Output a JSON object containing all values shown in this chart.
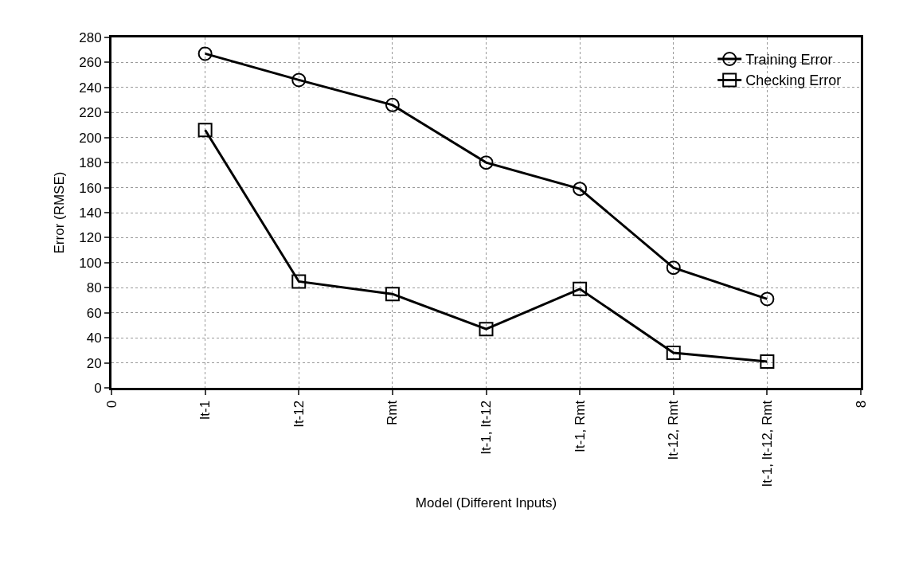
{
  "chart_data": {
    "type": "line",
    "xlabel": "Model (Different Inputs)",
    "ylabel": "Error (RMSE)",
    "x": [
      1,
      2,
      3,
      4,
      5,
      6,
      7
    ],
    "series": [
      {
        "name": "Training Error",
        "color": "#000000",
        "marker": "circle",
        "values": [
          267,
          246,
          226,
          180,
          159,
          96,
          71
        ]
      },
      {
        "name": "Checking Error",
        "color": "#000000",
        "marker": "square",
        "values": [
          206,
          85,
          75,
          47,
          79,
          28,
          21
        ]
      }
    ],
    "xlim": [
      0,
      8
    ],
    "xticks": [
      0,
      {
        "value": 1,
        "label": "It-1"
      },
      {
        "value": 2,
        "label": "It-12"
      },
      {
        "value": 3,
        "label": "Rmt"
      },
      {
        "value": 4,
        "label": "It-1, It-12"
      },
      {
        "value": 5,
        "label": "It-1, Rmt"
      },
      {
        "value": 6,
        "label": "It-12, Rmt"
      },
      {
        "value": 7,
        "label": "It-1, It-12, Rmt"
      },
      8
    ],
    "ylim": [
      0,
      280
    ],
    "yticks": [
      0,
      20,
      40,
      60,
      80,
      100,
      120,
      140,
      160,
      180,
      200,
      220,
      240,
      260,
      280
    ],
    "grid": true,
    "legend": "top right",
    "line_style": "solid"
  }
}
